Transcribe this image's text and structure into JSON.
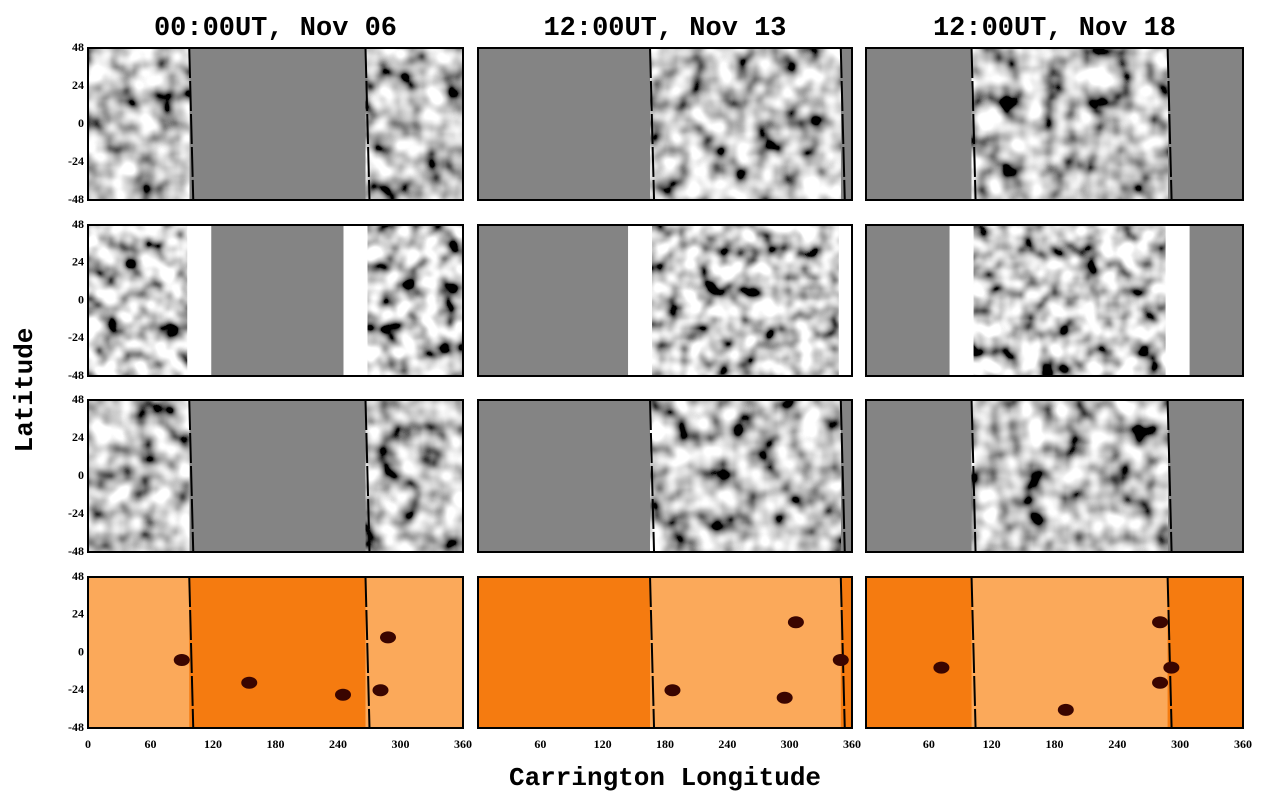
{
  "columns": [
    {
      "title": "00:00UT, Nov 06",
      "x_tick_labels": [
        "0",
        "60",
        "120",
        "180",
        "240",
        "300",
        "360"
      ]
    },
    {
      "title": "12:00UT, Nov 13",
      "x_tick_labels": [
        "60",
        "120",
        "180",
        "240",
        "300",
        "360"
      ]
    },
    {
      "title": "12:00UT, Nov 18",
      "x_tick_labels": [
        "60",
        "120",
        "180",
        "240",
        "300",
        "360"
      ]
    }
  ],
  "y_tick_labels": [
    "48",
    "24",
    "0",
    "-24",
    "-48"
  ],
  "y_label": "Latitude",
  "x_label": "Carrington Longitude"
}
